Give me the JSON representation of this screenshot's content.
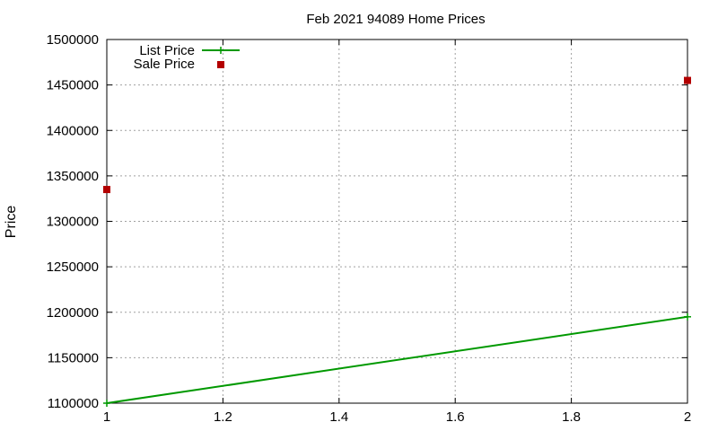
{
  "chart_data": {
    "type": "line",
    "title": "Feb 2021 94089 Home Prices",
    "xlabel": "",
    "ylabel": "Price",
    "xlim": [
      1,
      2
    ],
    "ylim": [
      1100000,
      1500000
    ],
    "x_ticks": [
      "1",
      "1.2",
      "1.4",
      "1.6",
      "1.8",
      "2"
    ],
    "y_ticks": [
      "1100000",
      "1150000",
      "1200000",
      "1250000",
      "1300000",
      "1350000",
      "1400000",
      "1450000",
      "1500000"
    ],
    "x_tick_values": [
      1,
      1.2,
      1.4,
      1.6,
      1.8,
      2
    ],
    "y_tick_values": [
      1100000,
      1150000,
      1200000,
      1250000,
      1300000,
      1350000,
      1400000,
      1450000,
      1500000
    ],
    "grid": true,
    "legend_position": "top-left",
    "series": [
      {
        "name": "List Price",
        "style": "linespoints",
        "marker": "plus",
        "color": "#009900",
        "x": [
          1,
          2
        ],
        "y": [
          1100000,
          1195000
        ]
      },
      {
        "name": "Sale Price",
        "style": "points",
        "marker": "square",
        "color": "#b30000",
        "x": [
          1,
          2
        ],
        "y": [
          1335000,
          1455000
        ]
      }
    ]
  }
}
